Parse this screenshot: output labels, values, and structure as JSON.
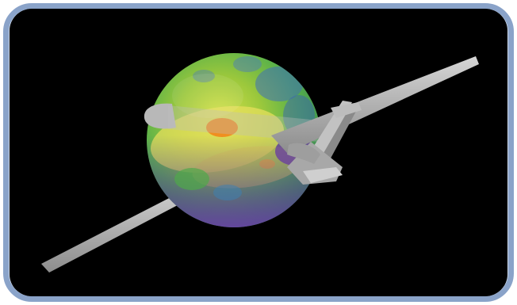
{
  "image": {
    "subject": "aircraft-radiation-pattern-sphere",
    "colors": {
      "frame_border": "#8aa3c9",
      "frame_fill": "#cdd9ea",
      "background": "#000000",
      "aircraft": "#a9a9a9",
      "pattern_high": "#f08a1c",
      "pattern_mid": "#e0de5a",
      "pattern_low": "#4fa84a",
      "pattern_min": "#6a3fa0"
    }
  }
}
